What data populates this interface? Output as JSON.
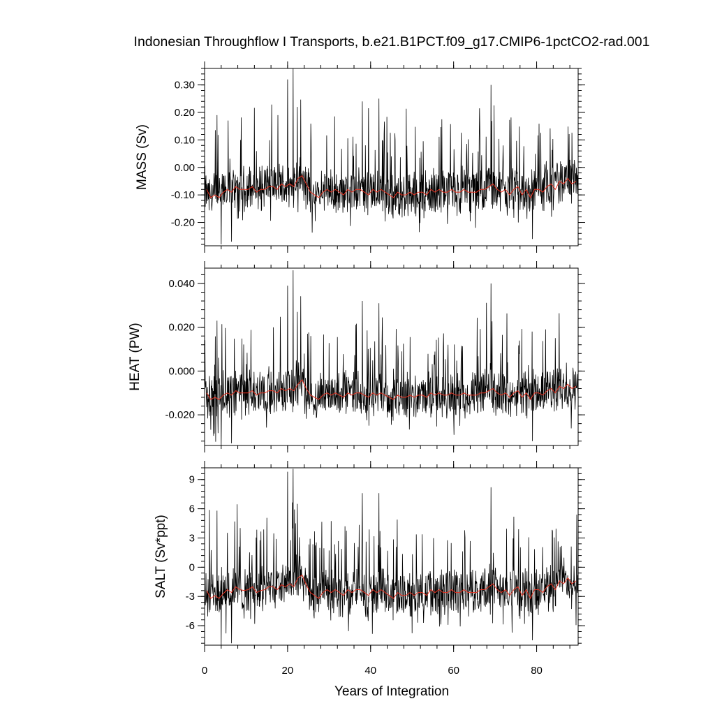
{
  "chart_data": {
    "title": "Indonesian Throughflow I Transports, b.e21.B1PCT.f09_g17.CMIP6-1pctCO2-rad.001",
    "xlabel": "Years of Integration",
    "x_range": [
      0,
      90
    ],
    "x_ticks": [
      0,
      20,
      40,
      60,
      80
    ],
    "x_tick_labels": [
      "0",
      "20",
      "40",
      "60",
      "80"
    ],
    "series_colors": {
      "monthly": "#000000",
      "annual_mean": "#e8301f"
    },
    "panels": [
      {
        "type": "line",
        "ylabel": "MASS (Sv)",
        "ylim": [
          -0.285,
          0.36
        ],
        "y_ticks": [
          0.3,
          0.2,
          0.1,
          0.0,
          -0.1,
          -0.2
        ],
        "y_tick_labels": [
          "0.30",
          "0.20",
          "0.10",
          "0.00",
          "-0.10",
          "-0.20"
        ],
        "annual_mean": [
          -0.08,
          -0.11,
          -0.1,
          -0.11,
          -0.09,
          -0.08,
          -0.09,
          -0.07,
          -0.08,
          -0.08,
          -0.08,
          -0.07,
          -0.09,
          -0.08,
          -0.08,
          -0.07,
          -0.07,
          -0.08,
          -0.06,
          -0.07,
          -0.06,
          -0.07,
          -0.04,
          -0.03,
          -0.06,
          -0.09,
          -0.1,
          -0.11,
          -0.09,
          -0.08,
          -0.09,
          -0.08,
          -0.09,
          -0.1,
          -0.08,
          -0.09,
          -0.08,
          -0.08,
          -0.09,
          -0.1,
          -0.08,
          -0.09,
          -0.08,
          -0.09,
          -0.1,
          -0.11,
          -0.09,
          -0.1,
          -0.1,
          -0.09,
          -0.1,
          -0.09,
          -0.09,
          -0.1,
          -0.08,
          -0.09,
          -0.08,
          -0.09,
          -0.09,
          -0.08,
          -0.09,
          -0.09,
          -0.08,
          -0.09,
          -0.09,
          -0.09,
          -0.08,
          -0.08,
          -0.07,
          -0.06,
          -0.08,
          -0.09,
          -0.08,
          -0.1,
          -0.08,
          -0.07,
          -0.1,
          -0.08,
          -0.11,
          -0.08,
          -0.08,
          -0.09,
          -0.07,
          -0.06,
          -0.08,
          -0.05,
          -0.06,
          -0.04,
          -0.06,
          -0.05
        ],
        "peaks": [
          [
            3.0,
            0.19
          ],
          [
            20.0,
            0.32
          ],
          [
            21.3,
            0.36
          ],
          [
            22.3,
            0.22
          ],
          [
            38.0,
            0.24
          ],
          [
            42.0,
            0.25
          ],
          [
            69.0,
            0.3
          ],
          [
            79.0,
            -0.26
          ],
          [
            4.0,
            -0.28
          ],
          [
            6.5,
            -0.27
          ]
        ]
      },
      {
        "type": "line",
        "ylabel": "HEAT (PW)",
        "ylim": [
          -0.034,
          0.047
        ],
        "y_ticks": [
          0.04,
          0.02,
          0.0,
          -0.02
        ],
        "y_tick_labels": [
          "0.040",
          "0.020",
          "0.000",
          "-0.020"
        ],
        "annual_mean": [
          -0.01,
          -0.013,
          -0.012,
          -0.013,
          -0.011,
          -0.01,
          -0.011,
          -0.009,
          -0.01,
          -0.01,
          -0.01,
          -0.009,
          -0.011,
          -0.01,
          -0.01,
          -0.009,
          -0.009,
          -0.01,
          -0.008,
          -0.009,
          -0.008,
          -0.009,
          -0.006,
          -0.004,
          -0.008,
          -0.011,
          -0.012,
          -0.013,
          -0.011,
          -0.01,
          -0.011,
          -0.01,
          -0.011,
          -0.012,
          -0.01,
          -0.011,
          -0.01,
          -0.01,
          -0.011,
          -0.012,
          -0.01,
          -0.011,
          -0.01,
          -0.011,
          -0.012,
          -0.013,
          -0.011,
          -0.012,
          -0.012,
          -0.011,
          -0.012,
          -0.011,
          -0.011,
          -0.012,
          -0.01,
          -0.011,
          -0.01,
          -0.011,
          -0.011,
          -0.01,
          -0.011,
          -0.011,
          -0.01,
          -0.011,
          -0.011,
          -0.011,
          -0.01,
          -0.01,
          -0.009,
          -0.008,
          -0.01,
          -0.011,
          -0.01,
          -0.012,
          -0.01,
          -0.009,
          -0.012,
          -0.01,
          -0.013,
          -0.01,
          -0.01,
          -0.011,
          -0.009,
          -0.008,
          -0.01,
          -0.007,
          -0.008,
          -0.006,
          -0.008,
          -0.007
        ],
        "peaks": [
          [
            3.0,
            0.023
          ],
          [
            20.0,
            0.039
          ],
          [
            21.3,
            0.046
          ],
          [
            22.3,
            0.027
          ],
          [
            38.0,
            0.032
          ],
          [
            42.0,
            0.031
          ],
          [
            69.0,
            0.04
          ],
          [
            79.0,
            -0.032
          ],
          [
            4.0,
            -0.034
          ],
          [
            6.5,
            -0.033
          ]
        ]
      },
      {
        "type": "line",
        "ylabel": "SALT (Sv*ppt)",
        "ylim": [
          -8.0,
          10.2
        ],
        "y_ticks": [
          9,
          6,
          3,
          0,
          -3,
          -6
        ],
        "y_tick_labels": [
          "9",
          "6",
          "3",
          "0",
          "-3",
          "-6"
        ],
        "annual_mean": [
          -2.4,
          -3.2,
          -2.9,
          -3.2,
          -2.7,
          -2.3,
          -2.6,
          -2.0,
          -2.3,
          -2.4,
          -2.3,
          -2.0,
          -2.6,
          -2.4,
          -2.3,
          -2.0,
          -2.0,
          -2.3,
          -1.8,
          -2.0,
          -1.7,
          -2.0,
          -1.1,
          -0.8,
          -1.8,
          -2.6,
          -2.9,
          -3.2,
          -2.6,
          -2.3,
          -2.6,
          -2.3,
          -2.6,
          -2.9,
          -2.3,
          -2.6,
          -2.3,
          -2.3,
          -2.6,
          -2.9,
          -2.3,
          -2.6,
          -2.3,
          -2.6,
          -2.9,
          -3.2,
          -2.6,
          -2.9,
          -2.9,
          -2.6,
          -2.9,
          -2.6,
          -2.6,
          -2.9,
          -2.3,
          -2.6,
          -2.3,
          -2.6,
          -2.6,
          -2.3,
          -2.6,
          -2.6,
          -2.3,
          -2.6,
          -2.6,
          -2.6,
          -2.3,
          -2.3,
          -2.0,
          -1.7,
          -2.3,
          -2.6,
          -2.3,
          -2.9,
          -2.3,
          -2.0,
          -2.9,
          -2.3,
          -3.2,
          -2.3,
          -2.3,
          -2.6,
          -2.0,
          -1.7,
          -2.3,
          -1.4,
          -1.7,
          -1.1,
          -1.7,
          -1.4
        ],
        "peaks": [
          [
            3.0,
            5.8
          ],
          [
            20.0,
            9.8
          ],
          [
            21.3,
            10.1
          ],
          [
            22.3,
            6.5
          ],
          [
            38.0,
            7.6
          ],
          [
            42.0,
            7.6
          ],
          [
            69.0,
            8.2
          ],
          [
            79.0,
            -7.5
          ],
          [
            4.0,
            -8.0
          ],
          [
            6.5,
            -7.8
          ]
        ]
      }
    ]
  }
}
